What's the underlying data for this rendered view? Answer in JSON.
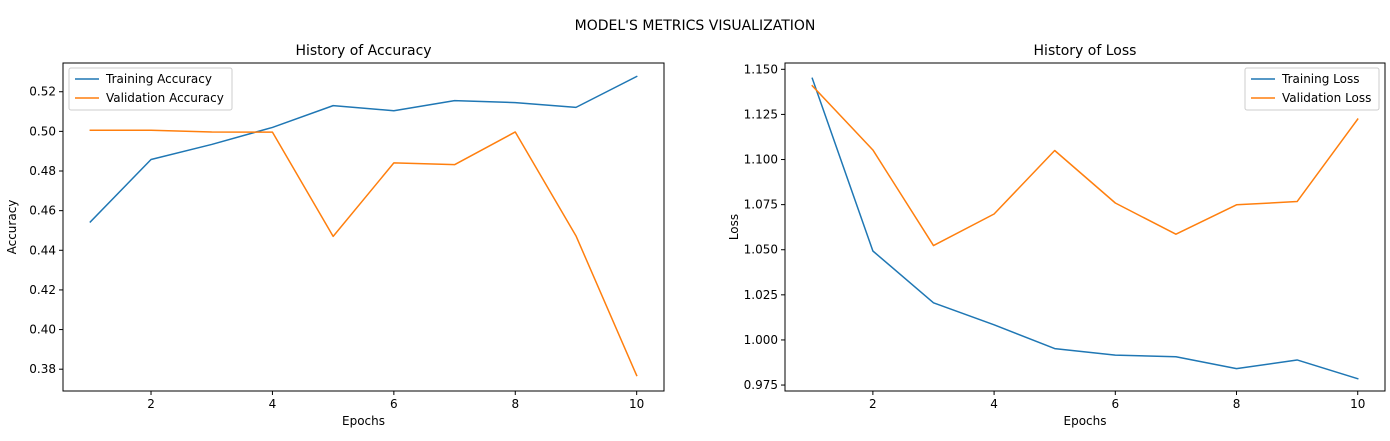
{
  "figure": {
    "title": "MODEL'S METRICS VISUALIZATION"
  },
  "chart_data": [
    {
      "type": "line",
      "title": "History of Accuracy",
      "xlabel": "Epochs",
      "ylabel": "Accuracy",
      "x": [
        1,
        2,
        3,
        4,
        5,
        6,
        7,
        8,
        9,
        10
      ],
      "xlim": [
        0.55,
        10.45
      ],
      "ylim": [
        0.369,
        0.5345
      ],
      "xticks": [
        2,
        4,
        6,
        8,
        10
      ],
      "xtick_labels": [
        "2",
        "4",
        "6",
        "8",
        "10"
      ],
      "yticks": [
        0.38,
        0.4,
        0.42,
        0.44,
        0.46,
        0.48,
        0.5,
        0.52
      ],
      "ytick_labels": [
        "0.38",
        "0.40",
        "0.42",
        "0.44",
        "0.46",
        "0.48",
        "0.50",
        "0.52"
      ],
      "grid": false,
      "legend_position": "upper-left",
      "series": [
        {
          "name": "Training Accuracy",
          "color": "#1f77b4",
          "values": [
            0.4543,
            0.4858,
            0.4934,
            0.502,
            0.513,
            0.5104,
            0.5155,
            0.5145,
            0.5121,
            0.5277
          ]
        },
        {
          "name": "Validation Accuracy",
          "color": "#ff7f0e",
          "values": [
            0.5006,
            0.5006,
            0.4997,
            0.4996,
            0.447,
            0.4841,
            0.4832,
            0.4997,
            0.4473,
            0.3768
          ]
        }
      ]
    },
    {
      "type": "line",
      "title": "History of Loss",
      "xlabel": "Epochs",
      "ylabel": "Loss",
      "x": [
        1,
        2,
        3,
        4,
        5,
        6,
        7,
        8,
        9,
        10
      ],
      "xlim": [
        0.55,
        10.45
      ],
      "ylim": [
        0.9717,
        1.1535
      ],
      "xticks": [
        2,
        4,
        6,
        8,
        10
      ],
      "xtick_labels": [
        "2",
        "4",
        "6",
        "8",
        "10"
      ],
      "yticks": [
        0.975,
        1.0,
        1.025,
        1.05,
        1.075,
        1.1,
        1.125,
        1.15
      ],
      "ytick_labels": [
        "0.975",
        "1.000",
        "1.025",
        "1.050",
        "1.075",
        "1.100",
        "1.125",
        "1.150"
      ],
      "grid": false,
      "legend_position": "upper-right",
      "series": [
        {
          "name": "Training Loss",
          "color": "#1f77b4",
          "values": [
            1.145,
            1.0493,
            1.0206,
            1.0084,
            0.9952,
            0.9916,
            0.9907,
            0.9841,
            0.9889,
            0.9785
          ]
        },
        {
          "name": "Validation Loss",
          "color": "#ff7f0e",
          "values": [
            1.1409,
            1.1053,
            1.0523,
            1.0698,
            1.105,
            1.0759,
            1.0586,
            1.0749,
            1.0767,
            1.1224
          ]
        }
      ]
    }
  ]
}
